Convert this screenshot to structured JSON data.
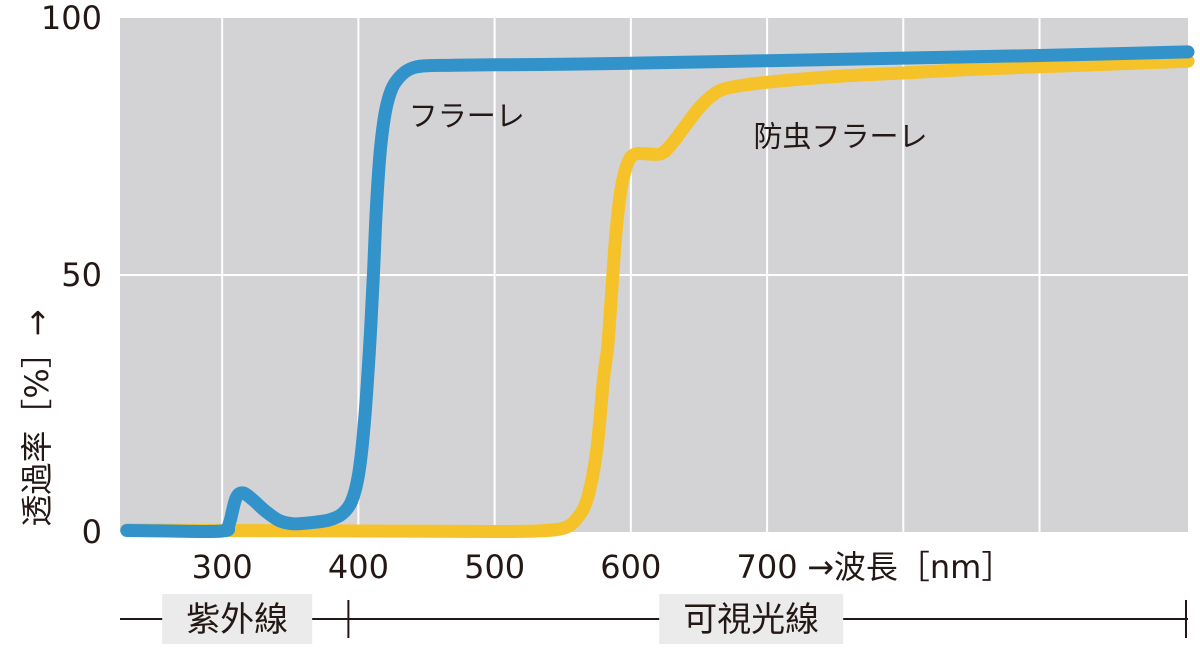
{
  "chart_data": {
    "type": "line",
    "xlabel": "→波長［nm］",
    "ylabel": "透過率［%］→",
    "xlim": [
      225,
      1009
    ],
    "ylim": [
      0,
      100
    ],
    "x_ticks": [
      300,
      400,
      500,
      600,
      700
    ],
    "y_ticks": [
      0,
      50,
      100
    ],
    "grid_x": [
      300,
      400,
      500,
      600,
      700,
      800,
      900
    ],
    "grid_y": [
      50
    ],
    "grid": true,
    "colors": {
      "plot_background": "#d3d3d5",
      "grid": "#ffffff",
      "text": "#231815"
    },
    "series": [
      {
        "name": "フラーレ",
        "color": "#3293cb",
        "points": [
          [
            230,
            0.3
          ],
          [
            260,
            0.2
          ],
          [
            300,
            0.2
          ],
          [
            305,
            1.5
          ],
          [
            310,
            6.5
          ],
          [
            315,
            7.6
          ],
          [
            322,
            6.4
          ],
          [
            332,
            4.0
          ],
          [
            342,
            2.2
          ],
          [
            352,
            1.6
          ],
          [
            365,
            1.8
          ],
          [
            378,
            2.3
          ],
          [
            388,
            3.5
          ],
          [
            395,
            6.0
          ],
          [
            400,
            11
          ],
          [
            404,
            20
          ],
          [
            408,
            35
          ],
          [
            411,
            50
          ],
          [
            413,
            62
          ],
          [
            416,
            74
          ],
          [
            420,
            82
          ],
          [
            425,
            86.5
          ],
          [
            432,
            89
          ],
          [
            440,
            90.3
          ],
          [
            450,
            90.7
          ],
          [
            470,
            90.8
          ],
          [
            500,
            90.9
          ],
          [
            550,
            91.0
          ],
          [
            600,
            91.2
          ],
          [
            700,
            91.7
          ],
          [
            800,
            92.2
          ],
          [
            900,
            92.7
          ],
          [
            1009,
            93.4
          ]
        ]
      },
      {
        "name": "防虫フラーレ",
        "color": "#f5c22a",
        "points": [
          [
            230,
            0.4
          ],
          [
            300,
            0.3
          ],
          [
            400,
            0.2
          ],
          [
            500,
            0.1
          ],
          [
            530,
            0.2
          ],
          [
            550,
            0.7
          ],
          [
            560,
            2.5
          ],
          [
            568,
            6.5
          ],
          [
            575,
            16
          ],
          [
            580,
            30
          ],
          [
            583,
            36
          ],
          [
            586,
            47
          ],
          [
            589,
            58
          ],
          [
            593,
            67
          ],
          [
            598,
            72
          ],
          [
            603,
            73.5
          ],
          [
            610,
            73.6
          ],
          [
            622,
            73.6
          ],
          [
            630,
            75.5
          ],
          [
            640,
            79
          ],
          [
            650,
            82.5
          ],
          [
            660,
            85
          ],
          [
            670,
            86.3
          ],
          [
            690,
            87.2
          ],
          [
            720,
            88.0
          ],
          [
            760,
            88.8
          ],
          [
            800,
            89.3
          ],
          [
            850,
            90.0
          ],
          [
            900,
            90.5
          ],
          [
            950,
            91.0
          ],
          [
            1009,
            91.6
          ]
        ]
      }
    ],
    "annotations": [
      "フラーレ",
      "防虫フラーレ"
    ],
    "regions": [
      {
        "label": "紫外線",
        "from": 225,
        "to": 400
      },
      {
        "label": "可視光線",
        "from": 400,
        "to": 1009
      }
    ]
  }
}
